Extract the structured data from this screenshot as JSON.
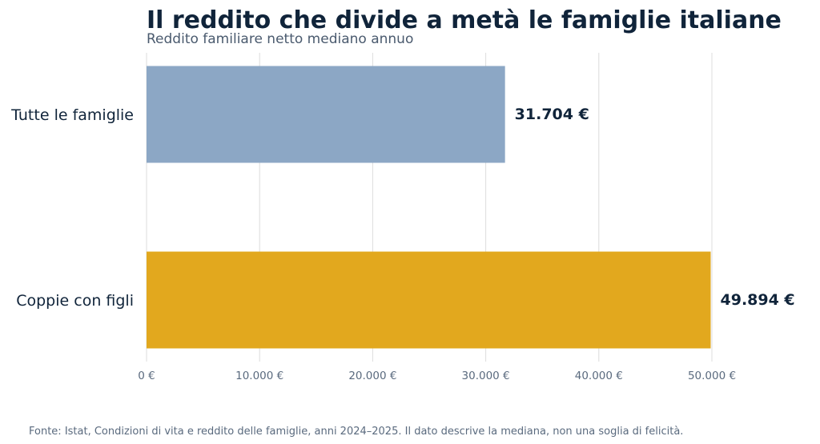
{
  "colors": {
    "title": "#10243a",
    "subtitle": "#4a5a6e",
    "category_text": "#10243a",
    "value_text": "#10243a",
    "tick_text": "#5a6a7e",
    "source_text": "#5a6a7e",
    "grid": "#dcdcdc"
  },
  "chart_data": {
    "type": "bar",
    "orientation": "horizontal",
    "title": "Il reddito che divide a metà le famiglie italiane",
    "subtitle": "Reddito familiare netto mediano annuo",
    "categories": [
      "Tutte le famiglie",
      "Coppie con figli"
    ],
    "values": [
      31704,
      49894
    ],
    "value_labels": [
      "31.704 €",
      "49.894 €"
    ],
    "bar_colors": [
      "#8ca7c5",
      "#e2a81e"
    ],
    "xlim": [
      0,
      50000
    ],
    "x_ticks": [
      0,
      10000,
      20000,
      30000,
      40000,
      50000
    ],
    "x_tick_labels": [
      "0 €",
      "10.000 €",
      "20.000 €",
      "30.000 €",
      "40.000 €",
      "50.000 €"
    ],
    "xlabel": "",
    "ylabel": "",
    "grid": "vertical",
    "legend": "none"
  },
  "source_note": "Fonte: Istat, Condizioni di vita e reddito delle famiglie, anni 2024–2025. Il dato descrive la mediana, non una soglia di felicità."
}
